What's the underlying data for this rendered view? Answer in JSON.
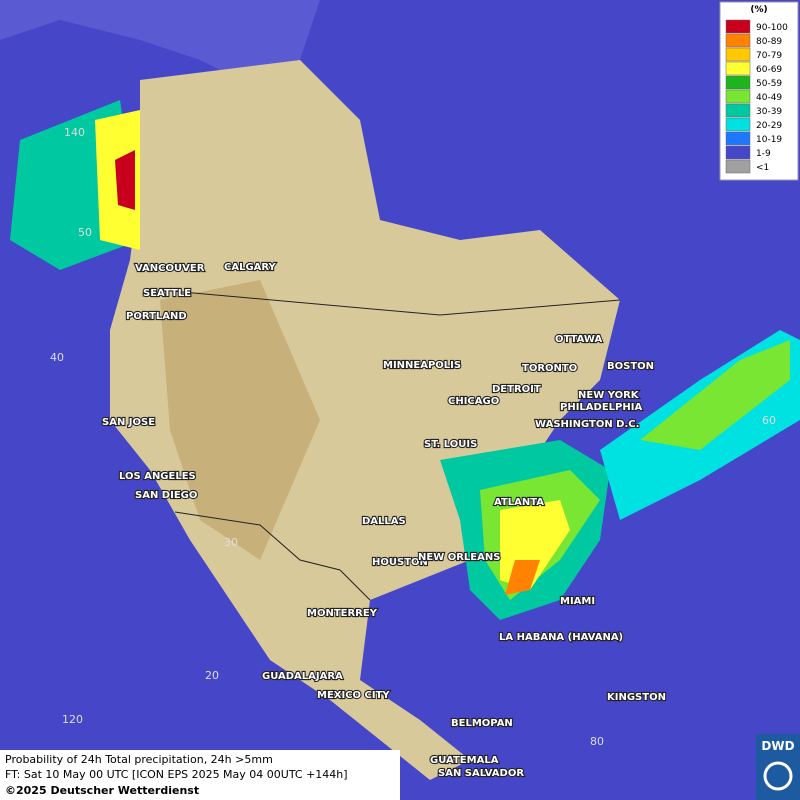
{
  "legend": {
    "title": "(%)",
    "items": [
      {
        "label": "90-100",
        "color": "#c8001e"
      },
      {
        "label": "80-89",
        "color": "#ff8200"
      },
      {
        "label": "70-79",
        "color": "#ffc800"
      },
      {
        "label": "60-69",
        "color": "#ffff32"
      },
      {
        "label": "50-59",
        "color": "#1eb41e"
      },
      {
        "label": "40-49",
        "color": "#78e632"
      },
      {
        "label": "30-39",
        "color": "#00c8a0"
      },
      {
        "label": "20-29",
        "color": "#00e1e1"
      },
      {
        "label": "10-19",
        "color": "#1e78ff"
      },
      {
        "label": "1-9",
        "color": "#4646c8"
      },
      {
        "label": "<1",
        "color": "#a0a0a0"
      }
    ]
  },
  "cities": [
    {
      "name": "VANCOUVER"
    },
    {
      "name": "CALGARY"
    },
    {
      "name": "SEATTLE"
    },
    {
      "name": "PORTLAND"
    },
    {
      "name": "MINNEAPOLIS"
    },
    {
      "name": "OTTAWA"
    },
    {
      "name": "TORONTO"
    },
    {
      "name": "BOSTON"
    },
    {
      "name": "DETROIT"
    },
    {
      "name": "NEW YORK"
    },
    {
      "name": "PHILADELPHIA"
    },
    {
      "name": "CHICAGO"
    },
    {
      "name": "WASHINGTON D.C."
    },
    {
      "name": "SAN JOSE"
    },
    {
      "name": "ST. LOUIS"
    },
    {
      "name": "LOS ANGELES"
    },
    {
      "name": "SAN DIEGO"
    },
    {
      "name": "ATLANTA"
    },
    {
      "name": "DALLAS"
    },
    {
      "name": "HOUSTON"
    },
    {
      "name": "NEW ORLEANS"
    },
    {
      "name": "MONTERREY"
    },
    {
      "name": "MIAMI"
    },
    {
      "name": "LA HABANA (HAVANA)"
    },
    {
      "name": "GUADALAJARA"
    },
    {
      "name": "MEXICO CITY"
    },
    {
      "name": "KINGSTON"
    },
    {
      "name": "BELMOPAN"
    },
    {
      "name": "GUATEMALA"
    },
    {
      "name": "SAN SALVADOR"
    }
  ],
  "graticule": [
    "140",
    "50",
    "40",
    "30",
    "20",
    "120",
    "60",
    "80"
  ],
  "caption": {
    "line1": "Probability of 24h Total precipitation, 24h >5mm",
    "line2": "FT: Sat 10 May 00 UTC [ICON EPS 2025 May 04 00UTC +144h]",
    "line3": "©2025 Deutscher Wetterdienst"
  },
  "logo": "DWD"
}
